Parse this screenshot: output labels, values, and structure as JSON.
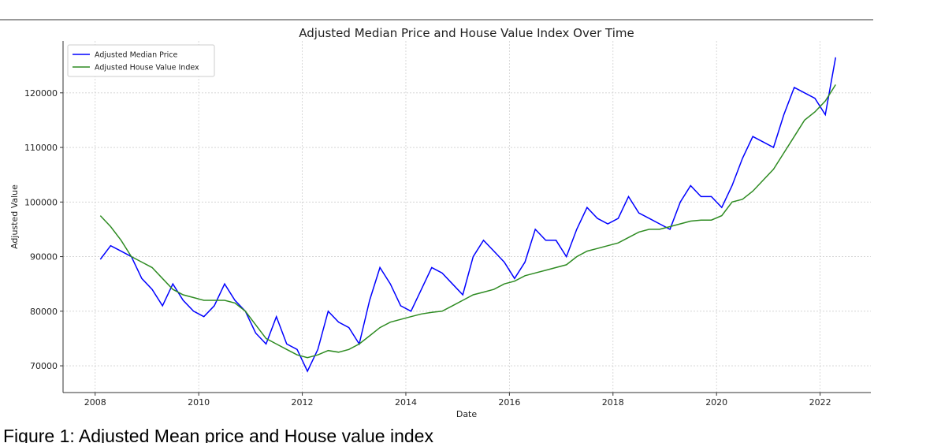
{
  "chart_data": {
    "type": "line",
    "title": "Adjusted Median Price and House Value Index Over Time",
    "xlabel": "Date",
    "ylabel": "Adjusted Value",
    "x": [
      2008.1,
      2008.3,
      2008.5,
      2008.7,
      2008.9,
      2009.1,
      2009.3,
      2009.5,
      2009.7,
      2009.9,
      2010.1,
      2010.3,
      2010.5,
      2010.7,
      2010.9,
      2011.1,
      2011.3,
      2011.5,
      2011.7,
      2011.9,
      2012.1,
      2012.3,
      2012.5,
      2012.7,
      2012.9,
      2013.1,
      2013.3,
      2013.5,
      2013.7,
      2013.9,
      2014.1,
      2014.3,
      2014.5,
      2014.7,
      2014.9,
      2015.1,
      2015.3,
      2015.5,
      2015.7,
      2015.9,
      2016.1,
      2016.3,
      2016.5,
      2016.7,
      2016.9,
      2017.1,
      2017.3,
      2017.5,
      2017.7,
      2017.9,
      2018.1,
      2018.3,
      2018.5,
      2018.7,
      2018.9,
      2019.1,
      2019.3,
      2019.5,
      2019.7,
      2019.9,
      2020.1,
      2020.3,
      2020.5,
      2020.7,
      2020.9,
      2021.1,
      2021.3,
      2021.5,
      2021.7,
      2021.9,
      2022.1,
      2022.3
    ],
    "series": [
      {
        "name": "Adjusted Median Price",
        "color": "#0000ff",
        "values": [
          89500,
          92000,
          91000,
          90000,
          86000,
          84000,
          81000,
          85000,
          82000,
          80000,
          79000,
          81000,
          85000,
          82000,
          80000,
          76000,
          74000,
          79000,
          74000,
          73000,
          69000,
          73000,
          80000,
          78000,
          77000,
          74000,
          82000,
          88000,
          85000,
          81000,
          80000,
          84000,
          88000,
          87000,
          85000,
          83000,
          90000,
          93000,
          91000,
          89000,
          86000,
          89000,
          95000,
          93000,
          93000,
          90000,
          95000,
          99000,
          97000,
          96000,
          97000,
          101000,
          98000,
          97000,
          96000,
          95000,
          100000,
          103000,
          101000,
          101000,
          99000,
          103000,
          108000,
          112000,
          111000,
          110000,
          116000,
          121000,
          120000,
          119000,
          116000,
          126500
        ]
      },
      {
        "name": "Adjusted House Value Index",
        "color": "#2e8b22",
        "values": [
          97500,
          95500,
          93000,
          90000,
          89000,
          88000,
          86000,
          84000,
          83000,
          82500,
          82000,
          82000,
          82000,
          81500,
          80000,
          77500,
          75000,
          74000,
          73000,
          72000,
          71500,
          72000,
          72800,
          72500,
          73000,
          74000,
          75500,
          77000,
          78000,
          78500,
          79000,
          79500,
          79800,
          80000,
          81000,
          82000,
          83000,
          83500,
          84000,
          85000,
          85500,
          86500,
          87000,
          87500,
          88000,
          88500,
          90000,
          91000,
          91500,
          92000,
          92500,
          93500,
          94500,
          95000,
          95000,
          95500,
          96000,
          96500,
          96700,
          96700,
          97500,
          100000,
          100500,
          102000,
          104000,
          106000,
          109000,
          112000,
          115000,
          116500,
          118500,
          121500
        ]
      }
    ],
    "xlim": [
      2007.38,
      2022.98
    ],
    "xticks": [
      2008,
      2010,
      2012,
      2014,
      2016,
      2018,
      2020,
      2022
    ],
    "ylim": [
      65100,
      129500
    ],
    "yticks": [
      70000,
      80000,
      90000,
      100000,
      110000,
      120000
    ],
    "grid": true,
    "legend": "upper left",
    "caption": "Figure 1: Adjusted Mean price and House value index"
  }
}
